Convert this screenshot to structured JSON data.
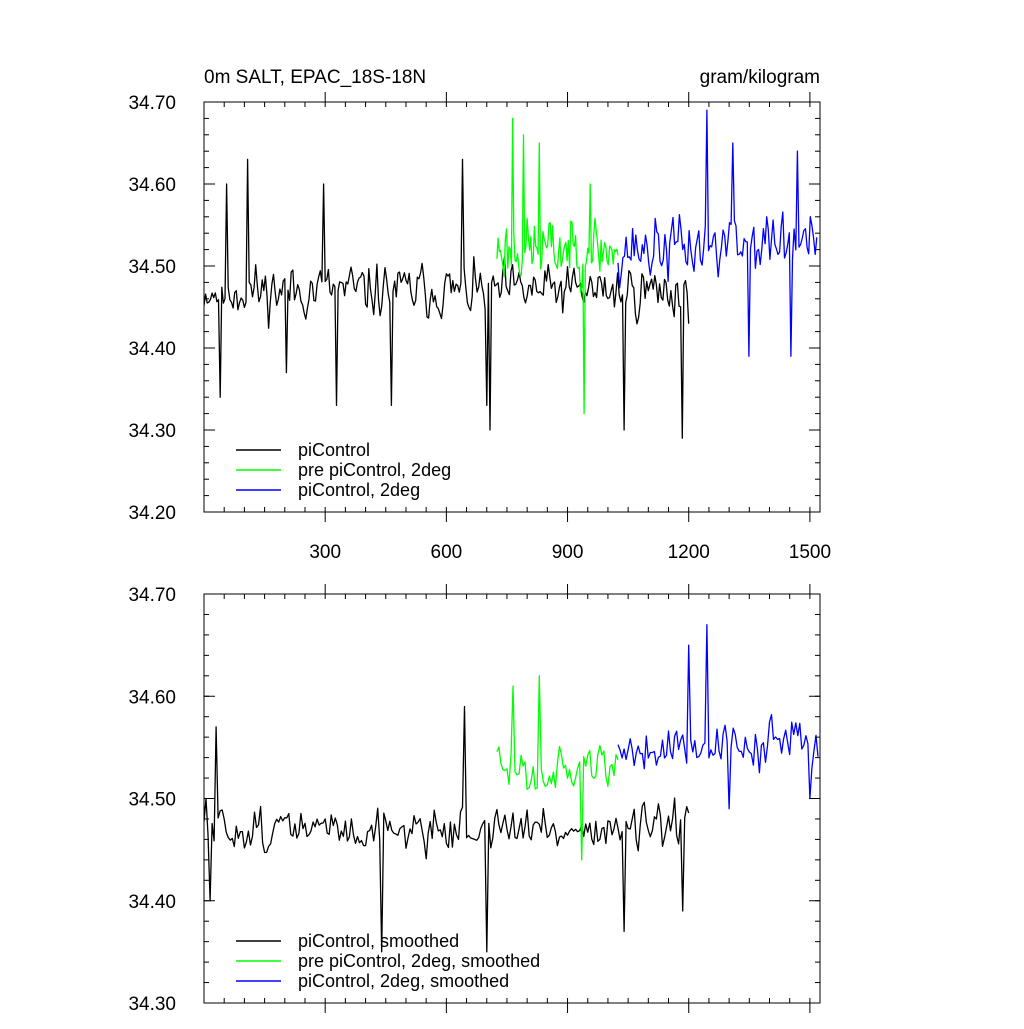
{
  "header": {
    "left_title": "0m SALT, EPAC_18S-18N",
    "right_title": "gram/kilogram"
  },
  "chart_data": [
    {
      "type": "line",
      "title": "0m SALT, EPAC_18S-18N",
      "units": "gram/kilogram",
      "xlim": [
        0,
        1525
      ],
      "ylim": [
        34.2,
        34.7
      ],
      "x_ticks": [
        300,
        600,
        900,
        1200,
        1500
      ],
      "x_tick_labels": [
        "300",
        "600",
        "900",
        "1200",
        "1500"
      ],
      "y_ticks": [
        34.2,
        34.3,
        34.4,
        34.5,
        34.6,
        34.7
      ],
      "y_tick_labels": [
        "34.20",
        "34.30",
        "34.40",
        "34.50",
        "34.60",
        "34.70"
      ],
      "legend_position": "bottom-left",
      "series": [
        {
          "name": "piControl",
          "color": "#000000",
          "x_start": 0,
          "x_end": 1200,
          "step": 4,
          "base": 34.47,
          "trend": 0.0,
          "amp": 0.045,
          "seed": 11,
          "extremes": [
            [
              55,
              34.6
            ],
            [
              40,
              34.34
            ],
            [
              110,
              34.63
            ],
            [
              205,
              34.37
            ],
            [
              295,
              34.6
            ],
            [
              330,
              34.33
            ],
            [
              465,
              34.33
            ],
            [
              640,
              34.63
            ],
            [
              700,
              34.33
            ],
            [
              710,
              34.3
            ],
            [
              1040,
              34.3
            ],
            [
              1185,
              34.29
            ]
          ]
        },
        {
          "name": "pre piControl, 2deg",
          "color": "#00ff00",
          "x_start": 725,
          "x_end": 1025,
          "step": 3,
          "base": 34.52,
          "trend": 0.0,
          "amp": 0.055,
          "seed": 23,
          "extremes": [
            [
              765,
              34.68
            ],
            [
              790,
              34.66
            ],
            [
              830,
              34.65
            ],
            [
              940,
              34.32
            ],
            [
              955,
              34.6
            ]
          ]
        },
        {
          "name": "piControl, 2deg",
          "color": "#0000ff",
          "x_start": 1025,
          "x_end": 1520,
          "step": 4,
          "base": 34.52,
          "trend": 0.01,
          "amp": 0.055,
          "seed": 37,
          "extremes": [
            [
              1245,
              34.69
            ],
            [
              1310,
              34.65
            ],
            [
              1350,
              34.39
            ],
            [
              1455,
              34.39
            ],
            [
              1470,
              34.64
            ]
          ]
        }
      ]
    },
    {
      "type": "line",
      "xlim": [
        0,
        1525
      ],
      "ylim": [
        34.3,
        34.7
      ],
      "x_ticks": [
        300,
        600,
        900,
        1200,
        1500
      ],
      "y_ticks": [
        34.3,
        34.4,
        34.5,
        34.6,
        34.7
      ],
      "y_tick_labels": [
        "34.30",
        "34.40",
        "34.50",
        "34.60",
        "34.70"
      ],
      "legend_position": "bottom-left",
      "series": [
        {
          "name": "piControl, smoothed",
          "color": "#000000",
          "x_start": 0,
          "x_end": 1200,
          "step": 5,
          "base": 34.47,
          "trend": 0.0,
          "amp": 0.03,
          "seed": 51,
          "extremes": [
            [
              5,
              34.5
            ],
            [
              15,
              34.4
            ],
            [
              30,
              34.57
            ],
            [
              440,
              34.35
            ],
            [
              645,
              34.59
            ],
            [
              700,
              34.35
            ],
            [
              1040,
              34.37
            ],
            [
              1185,
              34.39
            ]
          ]
        },
        {
          "name": "pre piControl, 2deg, smoothed",
          "color": "#00ff00",
          "x_start": 725,
          "x_end": 1025,
          "step": 5,
          "base": 34.53,
          "trend": 0.0,
          "amp": 0.035,
          "seed": 63,
          "extremes": [
            [
              765,
              34.61
            ],
            [
              830,
              34.62
            ],
            [
              935,
              34.44
            ]
          ]
        },
        {
          "name": "piControl, 2deg, smoothed",
          "color": "#0000ff",
          "x_start": 1025,
          "x_end": 1520,
          "step": 5,
          "base": 34.55,
          "trend": 0.005,
          "amp": 0.035,
          "seed": 79,
          "extremes": [
            [
              1200,
              34.65
            ],
            [
              1245,
              34.67
            ],
            [
              1300,
              34.49
            ],
            [
              1500,
              34.5
            ]
          ]
        }
      ]
    }
  ]
}
